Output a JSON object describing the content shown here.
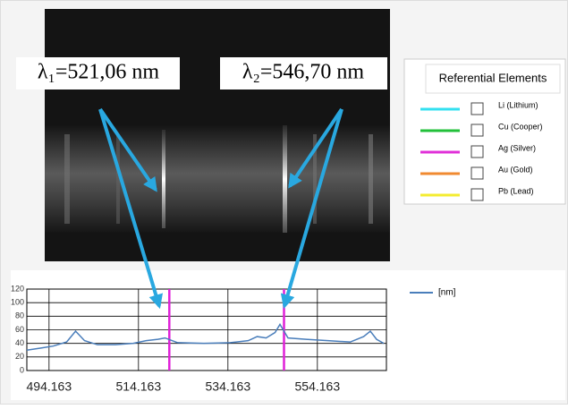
{
  "annotations": [
    "λ₁=521,06 nm",
    "λ₂=546,70 nm"
  ],
  "legend_panel": {
    "title": "Referential Elements",
    "items": [
      {
        "label": "Li (Lithium)",
        "color": "#33e0f0"
      },
      {
        "label": "Cu (Cooper)",
        "color": "#22c03a"
      },
      {
        "label": "Ag (Silver)",
        "color": "#e030d8"
      },
      {
        "label": "Au (Gold)",
        "color": "#f08a30"
      },
      {
        "label": "Pb (Lead)",
        "color": "#f4ec30"
      }
    ]
  },
  "chart_data": {
    "type": "line",
    "x": [
      489.2,
      492.2,
      495.1,
      498.1,
      500.1,
      502.1,
      505.0,
      509.0,
      513.0,
      515.9,
      518.5,
      520.1,
      522.9,
      528.8,
      534.7,
      538.7,
      540.7,
      542.7,
      544.7,
      545.8,
      547.6,
      551.6,
      556.5,
      561.5,
      564.5,
      566.0,
      567.4,
      569.0
    ],
    "series": [
      {
        "name": "[nm]",
        "color": "#4a7ebb",
        "values": [
          30,
          33,
          36,
          42,
          58,
          44,
          38,
          38,
          40,
          44,
          46,
          48,
          41,
          40,
          41,
          44,
          50,
          48,
          56,
          68,
          48,
          46,
          44,
          42,
          50,
          58,
          46,
          40
        ]
      }
    ],
    "markers": {
      "color": "#e020d8",
      "x": [
        521.06,
        546.7
      ]
    },
    "xlim": [
      489.2,
      569.6
    ],
    "xticks": [
      494.163,
      514.163,
      534.163,
      554.163
    ],
    "ylim": [
      0,
      120
    ],
    "yticks": [
      0,
      20,
      40,
      60,
      80,
      100,
      120
    ],
    "grid": true
  }
}
